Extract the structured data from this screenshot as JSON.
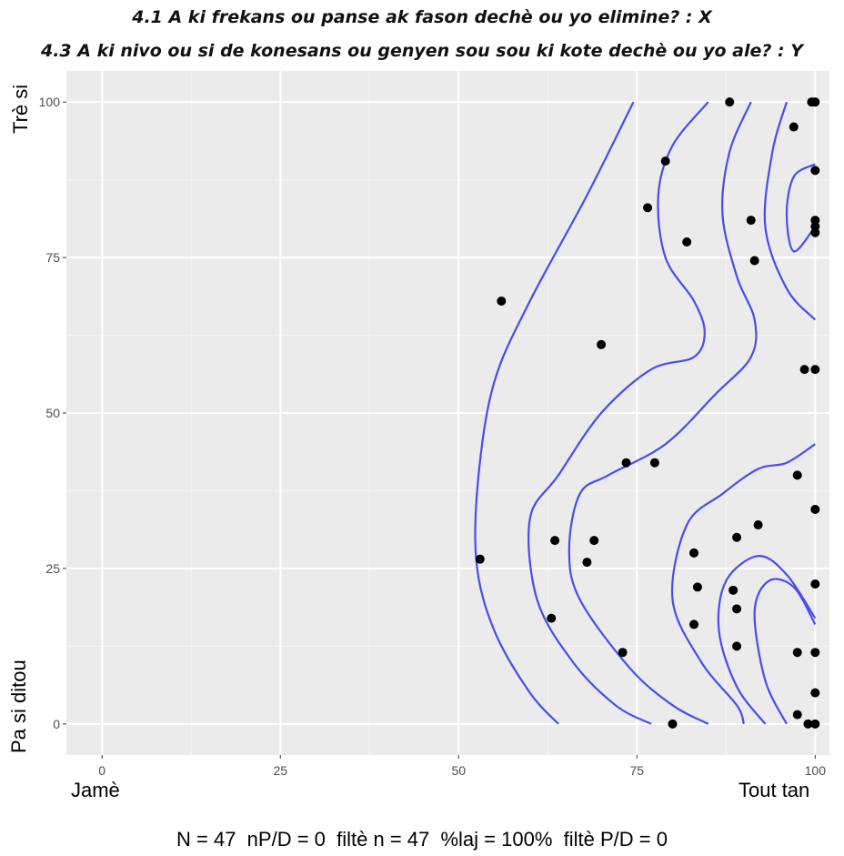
{
  "title_x": "4.1 A ki frekans ou panse ak fason dechè ou yo elimine? : X",
  "title_y": "4.3 A ki nivo ou si de konesans ou genyen sou sou ki kote dechè ou yo ale? : Y",
  "y_label_top": "Trè si",
  "y_label_bottom": "Pa si ditou",
  "x_label_left": "Jamè",
  "x_label_right": "Tout tan",
  "footer": "N = 47  nP/D = 0  filtè n = 47  %laj = 100%  filtè P/D = 0",
  "colors": {
    "panel": "#ebebeb",
    "grid": "#ffffff",
    "points": "#000000",
    "contours": "#4a4af0"
  },
  "chart_data": {
    "type": "scatter",
    "xlim": [
      -5,
      102
    ],
    "ylim": [
      -5,
      105
    ],
    "x_ticks": [
      "0",
      "25",
      "50",
      "75",
      "100"
    ],
    "y_ticks": [
      "0",
      "25",
      "50",
      "75",
      "100"
    ],
    "grid": true,
    "points": [
      [
        88,
        100
      ],
      [
        99.5,
        100
      ],
      [
        100,
        100
      ],
      [
        97,
        96
      ],
      [
        79,
        90.5
      ],
      [
        100,
        89
      ],
      [
        76.5,
        83
      ],
      [
        91,
        81
      ],
      [
        100,
        81
      ],
      [
        100,
        80
      ],
      [
        100,
        79
      ],
      [
        82,
        77.5
      ],
      [
        91.5,
        74.5
      ],
      [
        56,
        68
      ],
      [
        70,
        61
      ],
      [
        98.5,
        57
      ],
      [
        100,
        57
      ],
      [
        73.5,
        42
      ],
      [
        77.5,
        42
      ],
      [
        97.5,
        40
      ],
      [
        100,
        34.5
      ],
      [
        92,
        32
      ],
      [
        89,
        30
      ],
      [
        63.5,
        29.5
      ],
      [
        69,
        29.5
      ],
      [
        83,
        27.5
      ],
      [
        53,
        26.5
      ],
      [
        68,
        26
      ],
      [
        100,
        22.5
      ],
      [
        83.5,
        22
      ],
      [
        88.5,
        21.5
      ],
      [
        89,
        18.5
      ],
      [
        63,
        17
      ],
      [
        83,
        16
      ],
      [
        89,
        12.5
      ],
      [
        73,
        11.5
      ],
      [
        97.5,
        11.5
      ],
      [
        100,
        11.5
      ],
      [
        100,
        5
      ],
      [
        97.5,
        1.5
      ],
      [
        80,
        0
      ],
      [
        99,
        0
      ],
      [
        100,
        0
      ]
    ],
    "contours": [
      [
        [
          74.5,
          100
        ],
        [
          68,
          85
        ],
        [
          60,
          68
        ],
        [
          55,
          55
        ],
        [
          52.8,
          40
        ],
        [
          52.5,
          26
        ],
        [
          55,
          15
        ],
        [
          60,
          5
        ],
        [
          64,
          0
        ]
      ],
      [
        [
          85,
          100
        ],
        [
          80,
          93
        ],
        [
          78,
          85
        ],
        [
          79,
          75
        ],
        [
          83,
          68
        ],
        [
          84.5,
          63
        ],
        [
          83,
          59
        ],
        [
          77,
          57
        ],
        [
          70,
          50
        ],
        [
          64,
          40
        ],
        [
          60,
          33
        ],
        [
          61,
          20
        ],
        [
          66,
          10
        ],
        [
          72,
          3
        ],
        [
          77,
          0
        ]
      ],
      [
        [
          91,
          100
        ],
        [
          88,
          92
        ],
        [
          87,
          82
        ],
        [
          89,
          72
        ],
        [
          91.5,
          65
        ],
        [
          91,
          59
        ],
        [
          86,
          53
        ],
        [
          79,
          45
        ],
        [
          71,
          40
        ],
        [
          67,
          37
        ],
        [
          65.5,
          28
        ],
        [
          67,
          20
        ],
        [
          74,
          9
        ],
        [
          80,
          3
        ],
        [
          85,
          0
        ]
      ],
      [
        [
          96,
          100
        ],
        [
          94,
          92
        ],
        [
          93,
          80
        ],
        [
          96,
          70
        ],
        [
          100,
          65
        ]
      ],
      [
        [
          100,
          80
        ],
        [
          97,
          76
        ],
        [
          96,
          82
        ],
        [
          97,
          88
        ],
        [
          100,
          90
        ]
      ],
      [
        [
          100,
          45
        ],
        [
          96,
          42
        ],
        [
          92,
          41
        ],
        [
          87,
          37
        ],
        [
          82,
          32
        ],
        [
          80,
          20
        ],
        [
          84,
          10
        ],
        [
          89,
          3
        ],
        [
          90,
          0
        ]
      ],
      [
        [
          100,
          17
        ],
        [
          96,
          24
        ],
        [
          92,
          27
        ],
        [
          87.5,
          23
        ],
        [
          86.5,
          15
        ],
        [
          89,
          6
        ],
        [
          93,
          0
        ]
      ],
      [
        [
          100,
          16
        ],
        [
          97,
          22
        ],
        [
          93.5,
          23
        ],
        [
          91.5,
          18
        ],
        [
          93,
          7
        ],
        [
          96,
          0
        ]
      ]
    ]
  }
}
